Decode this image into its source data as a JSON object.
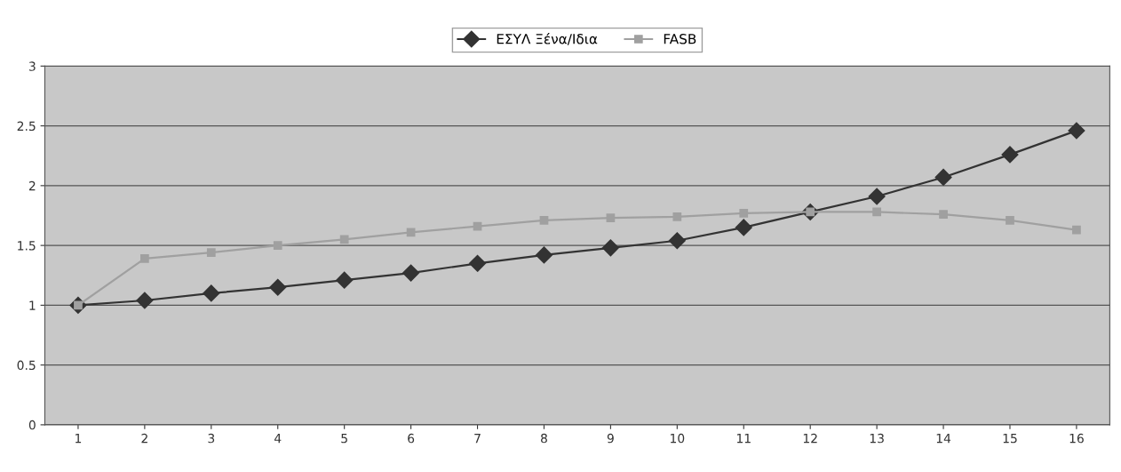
{
  "chart_data": {
    "type": "line",
    "categories": [
      "1",
      "2",
      "3",
      "4",
      "5",
      "6",
      "7",
      "8",
      "9",
      "10",
      "11",
      "12",
      "13",
      "14",
      "15",
      "16"
    ],
    "series": [
      {
        "name": "ΕΣΥΛ Ξένα/Ιδια",
        "color": "#333333",
        "marker": "diamond",
        "values": [
          1,
          1.04,
          1.1,
          1.15,
          1.21,
          1.27,
          1.35,
          1.42,
          1.48,
          1.54,
          1.65,
          1.78,
          1.91,
          2.07,
          2.26,
          2.46
        ]
      },
      {
        "name": "FASB",
        "color": "#a0a0a0",
        "marker": "square",
        "values": [
          1,
          1.39,
          1.44,
          1.5,
          1.55,
          1.61,
          1.66,
          1.71,
          1.73,
          1.74,
          1.77,
          1.78,
          1.78,
          1.76,
          1.71,
          1.63
        ]
      }
    ],
    "ylim": [
      0,
      3
    ],
    "yticks": [
      0,
      0.5,
      1,
      1.5,
      2,
      2.5,
      3
    ],
    "grid": "y",
    "legend": "top",
    "line_style": "solid"
  }
}
